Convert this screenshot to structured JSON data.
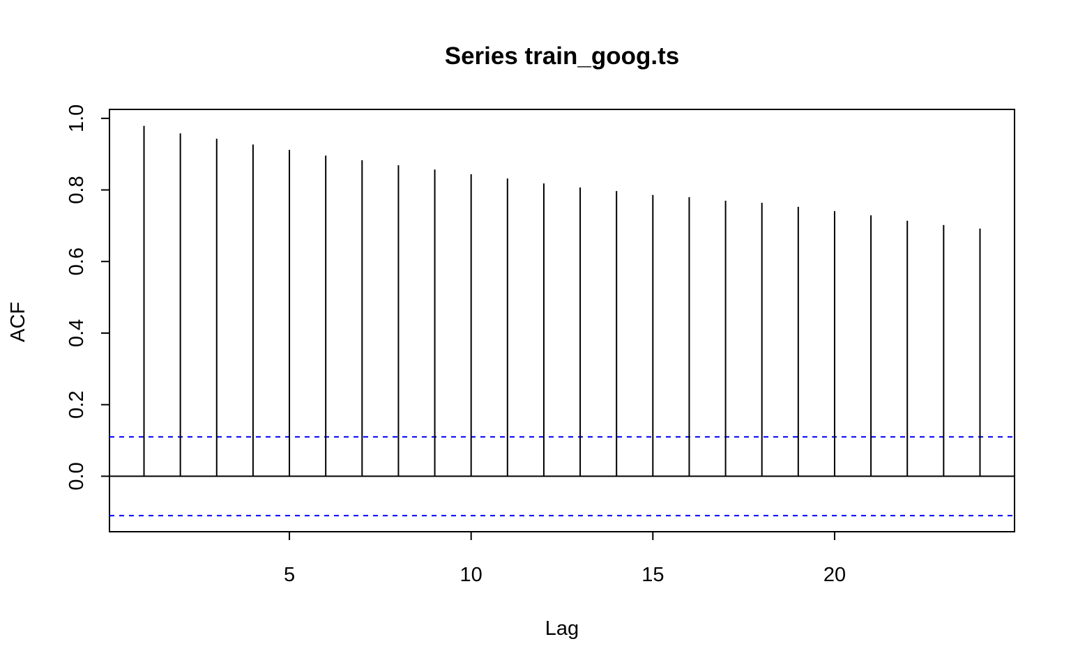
{
  "chart_data": {
    "type": "bar",
    "subtype": "acf-correlogram",
    "title": "Series train_goog.ts",
    "xlabel": "Lag",
    "ylabel": "ACF",
    "xlim": [
      0.05,
      24.95
    ],
    "ylim": [
      -0.155,
      1.025
    ],
    "xticks": [
      5,
      10,
      15,
      20
    ],
    "xtick_labels": [
      "5",
      "10",
      "15",
      "20"
    ],
    "yticks": [
      0.0,
      0.2,
      0.4,
      0.6,
      0.8,
      1.0
    ],
    "ytick_labels": [
      "0.0",
      "0.2",
      "0.4",
      "0.6",
      "0.8",
      "1.0"
    ],
    "lags": [
      1,
      2,
      3,
      4,
      5,
      6,
      7,
      8,
      9,
      10,
      11,
      12,
      13,
      14,
      15,
      16,
      17,
      18,
      19,
      20,
      21,
      22,
      23,
      24
    ],
    "values": [
      0.979,
      0.958,
      0.943,
      0.927,
      0.912,
      0.896,
      0.883,
      0.869,
      0.857,
      0.844,
      0.832,
      0.818,
      0.807,
      0.797,
      0.786,
      0.78,
      0.77,
      0.764,
      0.753,
      0.741,
      0.729,
      0.714,
      0.702,
      0.692
    ],
    "confidence_bound": 0.11,
    "bar_color": "#000000",
    "ci_color": "#0000FF",
    "zero_line_color": "#000000",
    "grid": false,
    "legend": "none"
  }
}
